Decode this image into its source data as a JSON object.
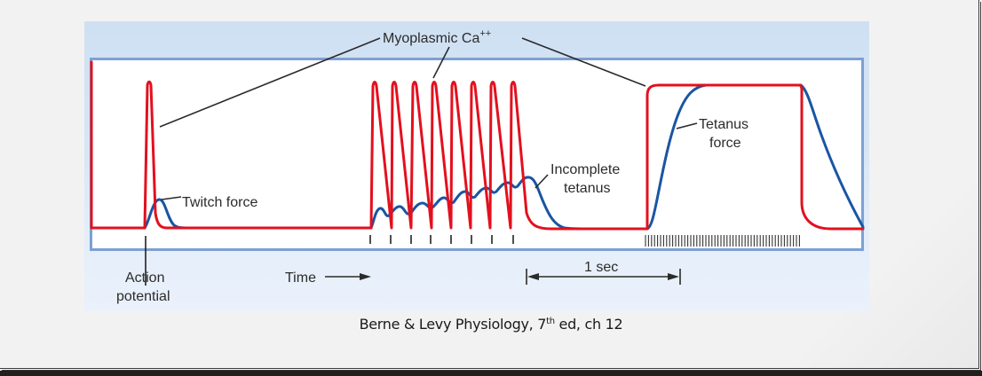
{
  "figure": {
    "labels": {
      "myoplasmic_ca": "Myoplasmic Ca",
      "myoplasmic_ca_superscript": "++",
      "twitch_force": "Twitch force",
      "incomplete_tetanus_line1": "Incomplete",
      "incomplete_tetanus_line2": "tetanus",
      "tetanus_force_line1": "Tetanus",
      "tetanus_force_line2": "force",
      "action_potential_line1": "Action",
      "action_potential_line2": "potential",
      "time": "Time",
      "scale_bar": "1 sec"
    },
    "colors": {
      "calcium_trace": "#e3101e",
      "force_trace": "#1a55a3",
      "panel_background": "#d4e3f5",
      "frame_border": "#7da0d2",
      "annotation": "#2b2b2b"
    },
    "panels": [
      {
        "name": "single twitch",
        "stimuli": 1
      },
      {
        "name": "incomplete tetanus",
        "stimuli": 8
      },
      {
        "name": "complete tetanus",
        "stimuli": "high-frequency train"
      }
    ]
  },
  "caption": {
    "prefix": "Berne & Levy Physiology, 7",
    "superscript": "th",
    "suffix": " ed, ch 12"
  }
}
